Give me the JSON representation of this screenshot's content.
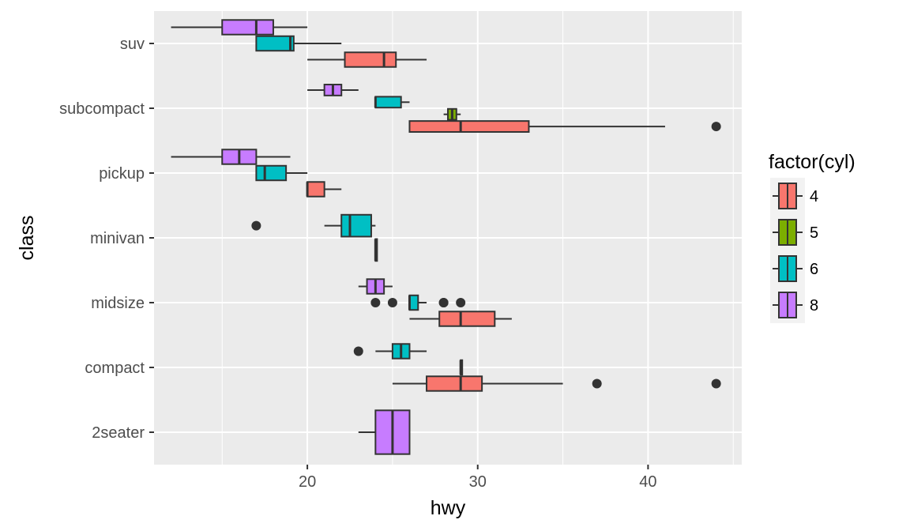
{
  "chart_data": {
    "type": "boxplot",
    "orientation": "horizontal",
    "title": "",
    "xlabel": "hwy",
    "ylabel": "class",
    "xlim": [
      11,
      45.5
    ],
    "x_ticks": [
      20,
      30,
      40
    ],
    "categories": [
      "2seater",
      "compact",
      "midsize",
      "minivan",
      "pickup",
      "subcompact",
      "suv"
    ],
    "legend": {
      "title": "factor(cyl)",
      "position": "right",
      "entries": [
        {
          "label": "4",
          "color": "#F8766D"
        },
        {
          "label": "5",
          "color": "#7CAE00"
        },
        {
          "label": "6",
          "color": "#00BFC4"
        },
        {
          "label": "8",
          "color": "#C77CFF"
        }
      ]
    },
    "grid": true,
    "panel_background": "#EBEBEB",
    "boxes": [
      {
        "class": "suv",
        "cyl": "8",
        "min": 12,
        "q1": 15,
        "median": 17,
        "q3": 18,
        "max": 20,
        "outliers": []
      },
      {
        "class": "suv",
        "cyl": "6",
        "min": 17,
        "q1": 17,
        "median": 19,
        "q3": 19.2,
        "max": 22,
        "outliers": []
      },
      {
        "class": "suv",
        "cyl": "4",
        "min": 20,
        "q1": 22.2,
        "median": 24.5,
        "q3": 25.2,
        "max": 27,
        "outliers": []
      },
      {
        "class": "subcompact",
        "cyl": "8",
        "min": 20,
        "q1": 21,
        "median": 21.5,
        "q3": 22,
        "max": 23,
        "outliers": []
      },
      {
        "class": "subcompact",
        "cyl": "6",
        "min": 24,
        "q1": 24,
        "median": 24,
        "q3": 25.5,
        "max": 26,
        "outliers": []
      },
      {
        "class": "subcompact",
        "cyl": "5",
        "min": 28,
        "q1": 28.25,
        "median": 28.5,
        "q3": 28.75,
        "max": 29,
        "outliers": []
      },
      {
        "class": "subcompact",
        "cyl": "4",
        "min": 26,
        "q1": 26,
        "median": 29,
        "q3": 33,
        "max": 41,
        "outliers": [
          44
        ]
      },
      {
        "class": "pickup",
        "cyl": "8",
        "min": 12,
        "q1": 15,
        "median": 16,
        "q3": 17,
        "max": 19,
        "outliers": []
      },
      {
        "class": "pickup",
        "cyl": "6",
        "min": 17,
        "q1": 17,
        "median": 17.5,
        "q3": 18.75,
        "max": 20,
        "outliers": []
      },
      {
        "class": "pickup",
        "cyl": "4",
        "min": 20,
        "q1": 20,
        "median": 20,
        "q3": 21,
        "max": 22,
        "outliers": []
      },
      {
        "class": "minivan",
        "cyl": "6",
        "min": 21,
        "q1": 22,
        "median": 22.5,
        "q3": 23.75,
        "max": 24,
        "outliers": [
          17
        ]
      },
      {
        "class": "minivan",
        "cyl": "4",
        "min": 24,
        "q1": 24,
        "median": 24,
        "q3": 24,
        "max": 24,
        "outliers": []
      },
      {
        "class": "midsize",
        "cyl": "8",
        "min": 23,
        "q1": 23.5,
        "median": 24,
        "q3": 24.5,
        "max": 25,
        "outliers": []
      },
      {
        "class": "midsize",
        "cyl": "6",
        "min": 26,
        "q1": 26,
        "median": 26,
        "q3": 26.5,
        "max": 27,
        "outliers": [
          24,
          25,
          28,
          28,
          29
        ]
      },
      {
        "class": "midsize",
        "cyl": "4",
        "min": 26,
        "q1": 27.75,
        "median": 29,
        "q3": 31,
        "max": 32,
        "outliers": []
      },
      {
        "class": "compact",
        "cyl": "6",
        "min": 24,
        "q1": 25,
        "median": 25.5,
        "q3": 26,
        "max": 27,
        "outliers": [
          23
        ]
      },
      {
        "class": "compact",
        "cyl": "5",
        "min": 29,
        "q1": 29,
        "median": 29,
        "q3": 29,
        "max": 29,
        "outliers": []
      },
      {
        "class": "compact",
        "cyl": "4",
        "min": 25,
        "q1": 27,
        "median": 29,
        "q3": 30.25,
        "max": 35,
        "outliers": [
          37,
          44
        ]
      },
      {
        "class": "2seater",
        "cyl": "8",
        "min": 23,
        "q1": 24,
        "median": 25,
        "q3": 26,
        "max": 26,
        "outliers": []
      }
    ]
  }
}
